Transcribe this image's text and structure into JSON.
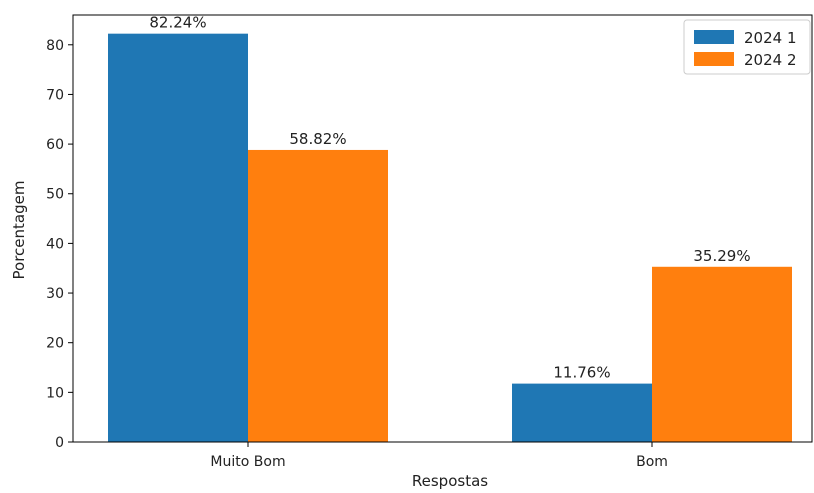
{
  "chart_data": {
    "type": "bar",
    "title": "",
    "xlabel": "Respostas",
    "ylabel": "Porcentagem",
    "categories": [
      "Muito Bom",
      "Bom"
    ],
    "series": [
      {
        "name": "2024 1",
        "color": "#1f77b4",
        "values": [
          82.24,
          11.76
        ],
        "labels": [
          "82.24%",
          "11.76%"
        ]
      },
      {
        "name": "2024 2",
        "color": "#ff7f0e",
        "values": [
          58.82,
          35.29
        ],
        "labels": [
          "58.82%",
          "35.29%"
        ]
      }
    ],
    "ylim": [
      0,
      86
    ],
    "yticks": [
      "0",
      "10",
      "20",
      "30",
      "40",
      "50",
      "60",
      "70",
      "80"
    ],
    "grid": false,
    "legend_position": "top-right"
  }
}
